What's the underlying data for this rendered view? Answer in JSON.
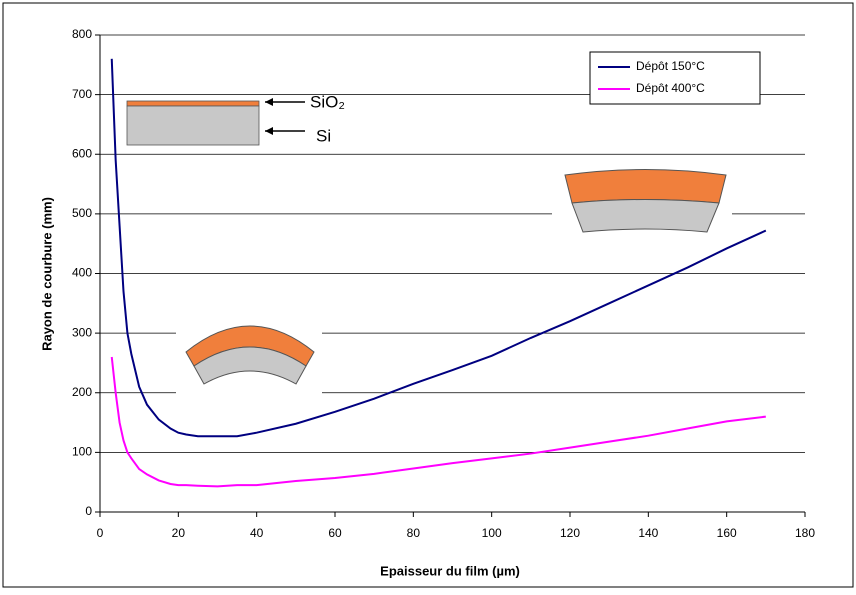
{
  "chart_data": {
    "type": "line",
    "x_label": "Epaisseur du film (µm)",
    "y_label": "Rayon de courbure (mm)",
    "annotations": [
      "SiO₂",
      "Si"
    ],
    "x": [
      3,
      4,
      5,
      6,
      7,
      8,
      10,
      12,
      15,
      18,
      20,
      22,
      25,
      30,
      35,
      40,
      50,
      60,
      70,
      80,
      90,
      100,
      110,
      120,
      130,
      140,
      150,
      160,
      170
    ],
    "series": [
      {
        "name": "Dépôt 150°C",
        "color": "#000080",
        "values": [
          760,
          590,
          480,
          370,
          300,
          265,
          210,
          180,
          155,
          140,
          133,
          130,
          127,
          127,
          127,
          133,
          148,
          168,
          190,
          215,
          238,
          262,
          292,
          320,
          350,
          380,
          410,
          442,
          472
        ]
      },
      {
        "name": "Dépôt 400°C",
        "color": "#ff00ff",
        "values": [
          260,
          200,
          150,
          120,
          100,
          90,
          72,
          63,
          53,
          47,
          45,
          45,
          44,
          43,
          45,
          45,
          52,
          57,
          64,
          73,
          82,
          90,
          98,
          108,
          118,
          128,
          140,
          152,
          160
        ]
      }
    ],
    "xlim": [
      0,
      180
    ],
    "xticks": [
      0,
      20,
      40,
      60,
      80,
      100,
      120,
      140,
      160,
      180
    ],
    "ylim": [
      0,
      800
    ],
    "yticks": [
      0,
      100,
      200,
      300,
      400,
      500,
      600,
      700,
      800
    ],
    "grid": true,
    "legend": "top-right"
  }
}
